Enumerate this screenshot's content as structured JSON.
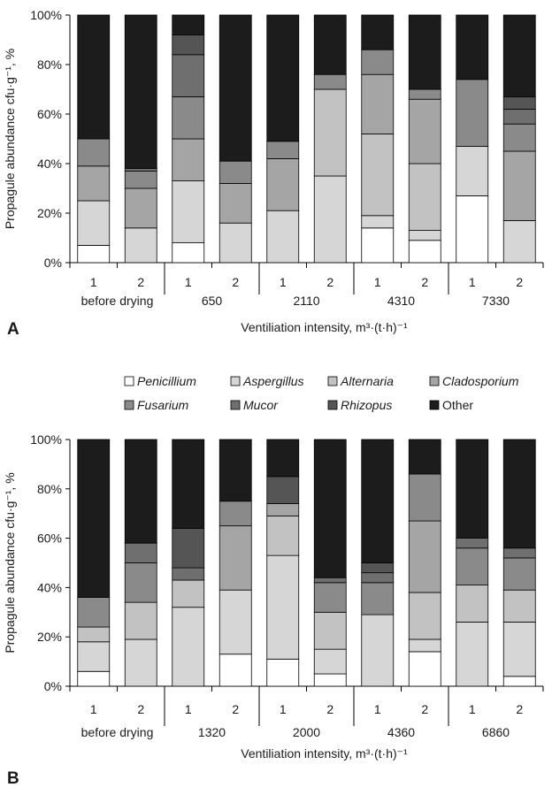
{
  "legend": {
    "items": [
      {
        "name": "Penicillium",
        "color": "#ffffff",
        "italic": true
      },
      {
        "name": "Aspergillus",
        "color": "#d6d6d6",
        "italic": true
      },
      {
        "name": "Alternaria",
        "color": "#c2c2c2",
        "italic": true
      },
      {
        "name": "Cladosporium",
        "color": "#a5a5a5",
        "italic": true
      },
      {
        "name": "Fusarium",
        "color": "#8a8a8a",
        "italic": true
      },
      {
        "name": "Mucor",
        "color": "#6f6f6f",
        "italic": true
      },
      {
        "name": "Rhizopus",
        "color": "#555555",
        "italic": true
      },
      {
        "name": "Other",
        "color": "#1c1c1c",
        "italic": false
      }
    ]
  },
  "chart_data": [
    {
      "type": "bar",
      "stacked": true,
      "panel_label": "A",
      "ylabel": "Propagule abundance cfu·g⁻¹, %",
      "xlabel": "Ventiliation intensity, m³·(t·h)⁻¹",
      "ylim": [
        0,
        100
      ],
      "yticks": [
        "0%",
        "20%",
        "40%",
        "60%",
        "80%",
        "100%"
      ],
      "categories": [
        "1",
        "2",
        "1",
        "2",
        "1",
        "2",
        "1",
        "2",
        "1",
        "2"
      ],
      "groups": [
        "before drying",
        "650",
        "2110",
        "4310",
        "7330"
      ],
      "series": [
        {
          "name": "Penicillium",
          "values": [
            7,
            0,
            8,
            0,
            0,
            0,
            14,
            9,
            27,
            0
          ]
        },
        {
          "name": "Aspergillus",
          "values": [
            18,
            14,
            25,
            16,
            21,
            35,
            5,
            4,
            20,
            17
          ]
        },
        {
          "name": "Alternaria",
          "values": [
            0,
            0,
            0,
            0,
            0,
            35,
            33,
            27,
            0,
            0
          ]
        },
        {
          "name": "Cladosporium",
          "values": [
            14,
            16,
            17,
            16,
            21,
            0,
            24,
            26,
            0,
            28
          ]
        },
        {
          "name": "Fusarium",
          "values": [
            11,
            7,
            17,
            9,
            7,
            6,
            10,
            4,
            27,
            11
          ]
        },
        {
          "name": "Mucor",
          "values": [
            0,
            1,
            17,
            0,
            0,
            0,
            0,
            0,
            0,
            6
          ]
        },
        {
          "name": "Rhizopus",
          "values": [
            0,
            0,
            8,
            0,
            0,
            0,
            0,
            0,
            0,
            5
          ]
        },
        {
          "name": "Other",
          "values": [
            50,
            62,
            8,
            59,
            51,
            24,
            14,
            30,
            26,
            33
          ]
        }
      ]
    },
    {
      "type": "bar",
      "stacked": true,
      "panel_label": "B",
      "ylabel": "Propagule abundance cfu·g⁻¹, %",
      "xlabel": "Ventiliation intensity, m³·(t·h)⁻¹",
      "ylim": [
        0,
        100
      ],
      "yticks": [
        "0%",
        "20%",
        "40%",
        "60%",
        "80%",
        "100%"
      ],
      "categories": [
        "1",
        "2",
        "1",
        "2",
        "1",
        "2",
        "1",
        "2",
        "1",
        "2"
      ],
      "groups": [
        "before drying",
        "1320",
        "2000",
        "4360",
        "6860"
      ],
      "series": [
        {
          "name": "Penicillium",
          "values": [
            6,
            0,
            0,
            13,
            11,
            5,
            0,
            14,
            0,
            4
          ]
        },
        {
          "name": "Aspergillus",
          "values": [
            12,
            19,
            32,
            26,
            42,
            10,
            29,
            5,
            26,
            22
          ]
        },
        {
          "name": "Alternaria",
          "values": [
            6,
            15,
            11,
            0,
            16,
            15,
            0,
            19,
            15,
            13
          ]
        },
        {
          "name": "Cladosporium",
          "values": [
            0,
            0,
            0,
            26,
            5,
            0,
            0,
            29,
            0,
            0
          ]
        },
        {
          "name": "Fusarium",
          "values": [
            12,
            16,
            0,
            10,
            0,
            12,
            13,
            19,
            15,
            13
          ]
        },
        {
          "name": "Mucor",
          "values": [
            0,
            8,
            5,
            0,
            0,
            2,
            4,
            0,
            4,
            4
          ]
        },
        {
          "name": "Rhizopus",
          "values": [
            0,
            0,
            16,
            0,
            11,
            0,
            4,
            0,
            0,
            0
          ]
        },
        {
          "name": "Other",
          "values": [
            64,
            42,
            36,
            25,
            15,
            56,
            50,
            14,
            40,
            44
          ]
        }
      ]
    }
  ]
}
